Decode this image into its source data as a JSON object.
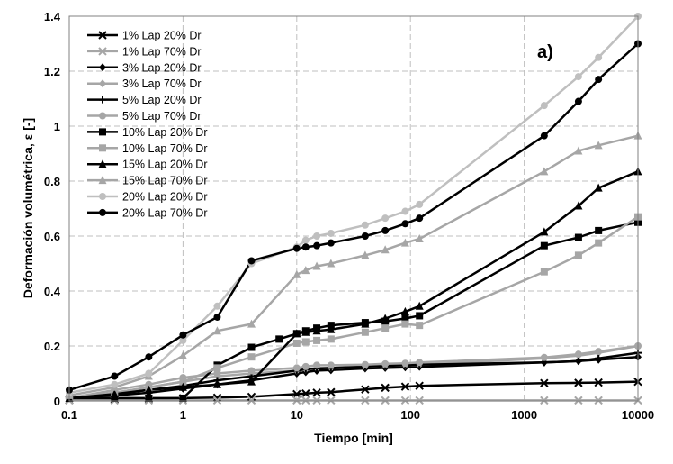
{
  "chart_data": {
    "type": "line",
    "title": "",
    "panel_label": "a)",
    "xlabel": "Tiempo [min]",
    "ylabel": "Deformación volumétrica, ε [-]",
    "xscale": "log",
    "xlim": [
      0.1,
      10000
    ],
    "ylim": [
      0,
      1.4
    ],
    "x_ticks": [
      0.1,
      1,
      10,
      100,
      1000,
      10000
    ],
    "x_tick_labels": [
      "0.1",
      "1",
      "10",
      "100",
      "1000",
      "10000"
    ],
    "y_ticks": [
      0,
      0.2,
      0.4,
      0.6,
      0.8,
      1,
      1.2,
      1.4
    ],
    "y_tick_labels": [
      "0",
      "0.2",
      "0.4",
      "0.6",
      "0.8",
      "1",
      "1.2",
      "1.4"
    ],
    "grid": "dashed",
    "legend_position": "top-left",
    "colors": {
      "black": "#000000",
      "gray": "#a6a6a6",
      "lightgray": "#bfbfbf",
      "palegray": "#d0d0d0"
    },
    "series": [
      {
        "name": "1% Lap 20% Dr",
        "color": "#000000",
        "marker": "x",
        "x": [
          0.1,
          0.25,
          0.5,
          1,
          2,
          4,
          10,
          12,
          15,
          20,
          40,
          60,
          90,
          120,
          1500,
          3000,
          4500,
          10000
        ],
        "y": [
          0.003,
          0.005,
          0.008,
          0.01,
          0.012,
          0.015,
          0.025,
          0.027,
          0.03,
          0.032,
          0.042,
          0.048,
          0.052,
          0.055,
          0.065,
          0.066,
          0.067,
          0.07
        ]
      },
      {
        "name": "1% Lap 70% Dr",
        "color": "#a6a6a6",
        "marker": "x",
        "x": [
          0.1,
          0.25,
          0.5,
          1,
          2,
          4,
          10,
          12,
          15,
          20,
          40,
          60,
          90,
          120,
          1500,
          3000,
          4500,
          10000
        ],
        "y": [
          0.002,
          0.002,
          0.002,
          0.002,
          0.002,
          0.002,
          0.002,
          0.002,
          0.002,
          0.002,
          0.002,
          0.002,
          0.002,
          0.002,
          0.002,
          0.002,
          0.002,
          0.002
        ]
      },
      {
        "name": "3% Lap 20% Dr",
        "color": "#000000",
        "marker": "diamond",
        "x": [
          0.1,
          0.25,
          0.5,
          1,
          2,
          4,
          10,
          12,
          15,
          20,
          40,
          60,
          90,
          120,
          1500,
          3000,
          4500,
          10000
        ],
        "y": [
          0.01,
          0.02,
          0.03,
          0.045,
          0.06,
          0.075,
          0.1,
          0.105,
          0.11,
          0.112,
          0.118,
          0.12,
          0.122,
          0.124,
          0.14,
          0.145,
          0.15,
          0.16
        ]
      },
      {
        "name": "3% Lap 70% Dr",
        "color": "#a6a6a6",
        "marker": "diamond",
        "x": [
          0.1,
          0.25,
          0.5,
          1,
          2,
          4,
          10,
          12,
          15,
          20,
          40,
          60,
          90,
          120,
          1500,
          3000,
          4500,
          10000
        ],
        "y": [
          0.01,
          0.03,
          0.05,
          0.07,
          0.09,
          0.1,
          0.11,
          0.115,
          0.12,
          0.12,
          0.125,
          0.128,
          0.13,
          0.132,
          0.155,
          0.165,
          0.175,
          0.2
        ]
      },
      {
        "name": "5% Lap 20% Dr",
        "color": "#000000",
        "marker": "plus",
        "x": [
          0.1,
          0.25,
          0.5,
          1,
          2,
          4,
          10,
          12,
          15,
          20,
          40,
          60,
          90,
          120,
          1500,
          3000,
          4500,
          10000
        ],
        "y": [
          0.01,
          0.025,
          0.04,
          0.055,
          0.075,
          0.09,
          0.11,
          0.115,
          0.118,
          0.12,
          0.125,
          0.128,
          0.13,
          0.132,
          0.14,
          0.145,
          0.155,
          0.175
        ]
      },
      {
        "name": "5% Lap 70% Dr",
        "color": "#a6a6a6",
        "marker": "circle",
        "x": [
          0.1,
          0.25,
          0.5,
          1,
          2,
          4,
          10,
          12,
          15,
          20,
          40,
          60,
          90,
          120,
          1500,
          3000,
          4500,
          10000
        ],
        "y": [
          0.01,
          0.04,
          0.06,
          0.085,
          0.1,
          0.11,
          0.12,
          0.125,
          0.13,
          0.13,
          0.132,
          0.135,
          0.137,
          0.14,
          0.158,
          0.17,
          0.18,
          0.2
        ]
      },
      {
        "name": "10% Lap 20% Dr",
        "color": "#000000",
        "marker": "square",
        "x": [
          0.1,
          0.25,
          0.5,
          1,
          2,
          4,
          7,
          10,
          12,
          15,
          20,
          40,
          60,
          90,
          120,
          1500,
          3000,
          4500,
          10000
        ],
        "y": [
          0.01,
          0.01,
          0.01,
          0.01,
          0.13,
          0.195,
          0.225,
          0.245,
          0.255,
          0.265,
          0.275,
          0.285,
          0.29,
          0.3,
          0.31,
          0.565,
          0.595,
          0.62,
          0.65
        ]
      },
      {
        "name": "10% Lap 70% Dr",
        "color": "#a6a6a6",
        "marker": "square",
        "x": [
          0.1,
          0.25,
          0.5,
          1,
          2,
          4,
          10,
          12,
          15,
          20,
          40,
          60,
          90,
          120,
          1500,
          3000,
          4500,
          10000
        ],
        "y": [
          0.01,
          0.03,
          0.05,
          0.07,
          0.12,
          0.16,
          0.21,
          0.215,
          0.22,
          0.225,
          0.25,
          0.265,
          0.28,
          0.275,
          0.47,
          0.53,
          0.575,
          0.67
        ]
      },
      {
        "name": "15% Lap 20% Dr",
        "color": "#000000",
        "marker": "triangle",
        "x": [
          0.1,
          0.25,
          0.5,
          1,
          2,
          4,
          10,
          12,
          15,
          20,
          40,
          60,
          90,
          120,
          1500,
          3000,
          4500,
          10000
        ],
        "y": [
          0.01,
          0.025,
          0.04,
          0.05,
          0.06,
          0.07,
          0.245,
          0.25,
          0.255,
          0.26,
          0.28,
          0.3,
          0.325,
          0.345,
          0.615,
          0.71,
          0.775,
          0.835
        ]
      },
      {
        "name": "15% Lap 70% Dr",
        "color": "#a6a6a6",
        "marker": "triangle",
        "x": [
          0.1,
          0.25,
          0.5,
          1,
          2,
          4,
          10,
          12,
          15,
          20,
          40,
          60,
          90,
          120,
          1500,
          3000,
          4500,
          10000
        ],
        "y": [
          0.02,
          0.05,
          0.09,
          0.165,
          0.255,
          0.28,
          0.46,
          0.475,
          0.49,
          0.5,
          0.53,
          0.55,
          0.575,
          0.59,
          0.835,
          0.91,
          0.93,
          0.965
        ]
      },
      {
        "name": "20% Lap 20% Dr",
        "color": "#bfbfbf",
        "marker": "circle",
        "x": [
          0.1,
          0.25,
          0.5,
          1,
          2,
          4,
          10,
          12,
          15,
          20,
          40,
          60,
          90,
          120,
          1500,
          3000,
          4500,
          10000
        ],
        "y": [
          0.03,
          0.06,
          0.1,
          0.22,
          0.345,
          0.5,
          0.56,
          0.585,
          0.6,
          0.61,
          0.64,
          0.665,
          0.69,
          0.715,
          1.075,
          1.18,
          1.25,
          1.4
        ]
      },
      {
        "name": "20% Lap 70% Dr",
        "color": "#000000",
        "marker": "circle",
        "x": [
          0.1,
          0.25,
          0.5,
          1,
          2,
          4,
          10,
          12,
          15,
          20,
          40,
          60,
          90,
          120,
          1500,
          3000,
          4500,
          10000
        ],
        "y": [
          0.04,
          0.09,
          0.16,
          0.24,
          0.305,
          0.51,
          0.555,
          0.56,
          0.565,
          0.575,
          0.6,
          0.62,
          0.645,
          0.665,
          0.965,
          1.09,
          1.17,
          1.3
        ]
      }
    ]
  }
}
